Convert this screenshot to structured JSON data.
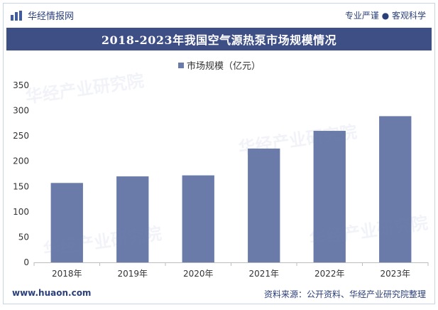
{
  "header": {
    "logo_text": "华经情报网",
    "tagline": "专业严谨 ● 客观科学"
  },
  "footer": {
    "site": "www.huaon.com",
    "source": "资料来源：公开资料、华经产业研究院整理"
  },
  "watermark": "华经产业研究院",
  "colors": {
    "bar": "#6a7ba9",
    "title_bg": "#3e4f86",
    "text": "#2b3f7a"
  },
  "chart_data": {
    "type": "bar",
    "title": "2018-2023年我国空气源热泵市场规模情况",
    "categories": [
      "2018年",
      "2019年",
      "2020年",
      "2021年",
      "2022年",
      "2023年"
    ],
    "series": [
      {
        "name": "市场规模（亿元）",
        "values": [
          157,
          170,
          172,
          225,
          260,
          289
        ]
      }
    ],
    "yticks": [
      0,
      50,
      100,
      150,
      200,
      250,
      300,
      350
    ],
    "ylim": [
      0,
      350
    ],
    "grid": false,
    "legend": "top-center"
  }
}
